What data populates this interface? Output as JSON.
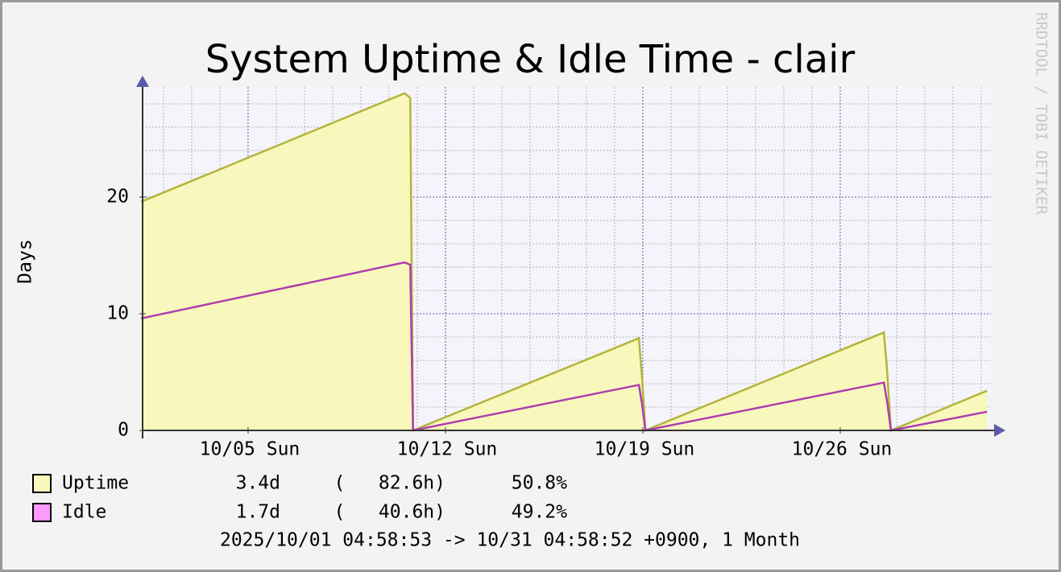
{
  "chart_data": {
    "type": "line",
    "title": "System Uptime & Idle Time - clair",
    "y_label": "Days",
    "watermark": "RRDTOOL / TOBI OETIKER",
    "footer": "2025/10/01 04:58:53 -> 10/31 04:58:52 +0900, 1 Month",
    "x": [
      1.207,
      10.55,
      10.75,
      10.85,
      18.86,
      18.97,
      19.09,
      27.55,
      27.66,
      27.8,
      31.207
    ],
    "series": [
      {
        "name": "Uptime",
        "color": "#b4b43c",
        "fill": "#f8f8bc",
        "legend_color": "#f8f8bc",
        "area": true,
        "stats": [
          "3.4d",
          "(   82.6h)",
          "50.8%"
        ],
        "values": [
          19.6,
          28.9,
          28.5,
          0,
          7.9,
          4.6,
          0,
          8.4,
          5.2,
          0,
          3.4
        ]
      },
      {
        "name": "Idle",
        "color": "#b03cb0",
        "legend_color": "#ff99ff",
        "area": false,
        "stats": [
          "1.7d",
          "(   40.6h)",
          "49.2%"
        ],
        "values": [
          9.6,
          14.4,
          14.2,
          0,
          3.9,
          2.3,
          0,
          4.1,
          2.5,
          0,
          1.6
        ]
      }
    ],
    "xlim": [
      1.207,
      31.207
    ],
    "xticks": [
      {
        "value": 5,
        "label": "10/05 Sun"
      },
      {
        "value": 12,
        "label": "10/12 Sun"
      },
      {
        "value": 19,
        "label": "10/19 Sun"
      },
      {
        "value": 26,
        "label": "10/26 Sun"
      }
    ],
    "x_minor_ticks": [
      2,
      3,
      4,
      5,
      6,
      7,
      8,
      9,
      10,
      11,
      12,
      13,
      14,
      15,
      16,
      17,
      18,
      19,
      20,
      21,
      22,
      23,
      24,
      25,
      26,
      27,
      28,
      29,
      30,
      31
    ],
    "ylim": [
      0,
      29.5
    ],
    "yticks": [
      0,
      10,
      20
    ],
    "y_minor_ticks": [
      2,
      4,
      6,
      8,
      10,
      12,
      14,
      16,
      18,
      20,
      22,
      24,
      26,
      28
    ],
    "grid": true
  }
}
